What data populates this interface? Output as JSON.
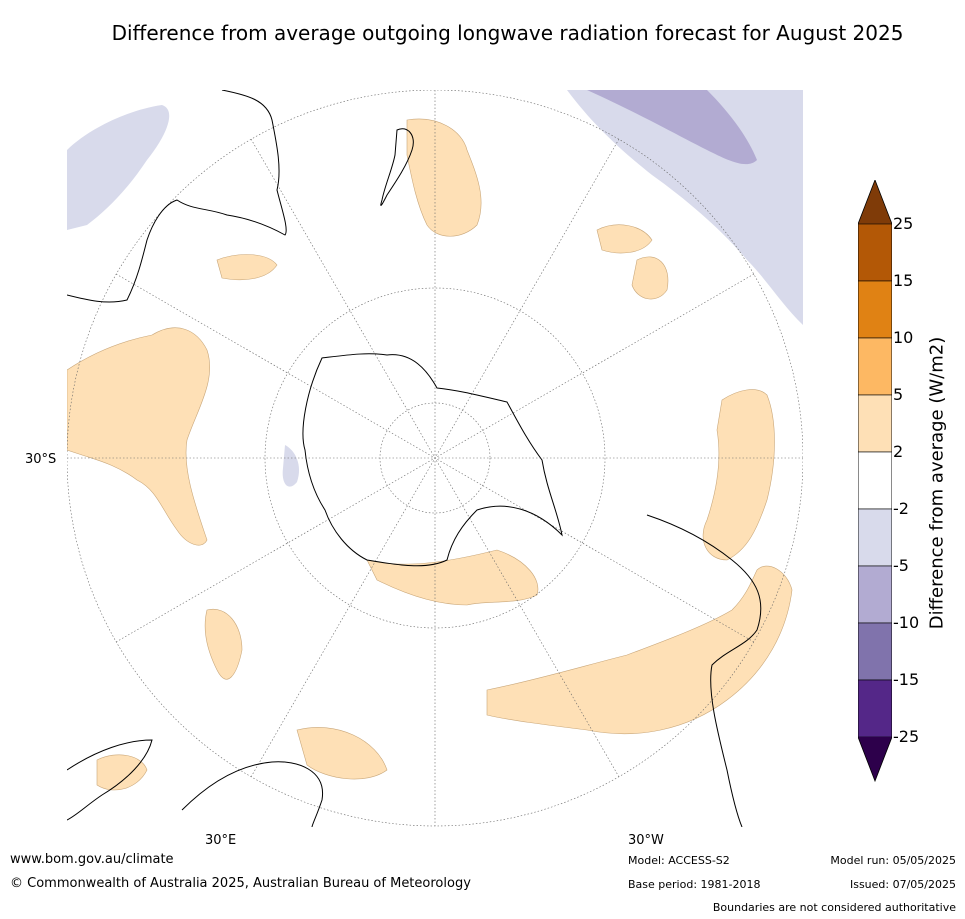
{
  "title": "Difference from average outgoing longwave radiation forecast for August 2025",
  "map_labels": {
    "lat": "30°S",
    "lon_left": "30°E",
    "lon_right": "30°W"
  },
  "colorbar": {
    "label": "Difference from average (W/m2)",
    "ticks": [
      "25",
      "15",
      "10",
      "5",
      "2",
      "-2",
      "-5",
      "-10",
      "-15",
      "-25"
    ],
    "colors": [
      "#7f3b08",
      "#b35806",
      "#e08214",
      "#fdb863",
      "#fee0b6",
      "#ffffff",
      "#d8daeb",
      "#b2abd2",
      "#8073ac",
      "#542788",
      "#2d004b"
    ]
  },
  "footer": {
    "website": "www.bom.gov.au/climate",
    "copyright": "© Commonwealth of Australia 2025, Australian Bureau of Meteorology",
    "model": "Model: ACCESS-S2",
    "base_period": "Base period: 1981-2018",
    "model_run": "Model run: 05/05/2025",
    "issued": "Issued: 07/05/2025",
    "disclaimer": "Boundaries are not considered authoritative"
  }
}
